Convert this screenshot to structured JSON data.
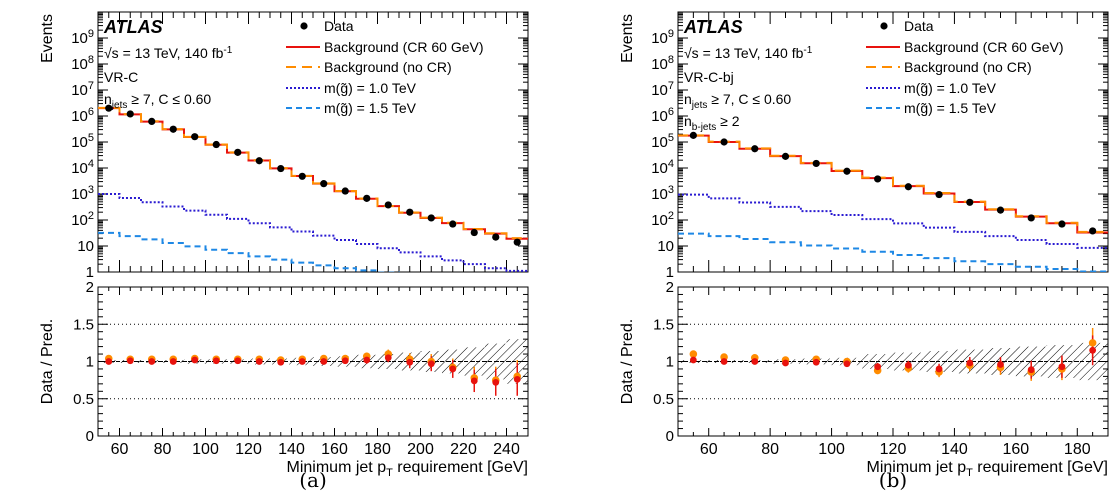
{
  "figure": {
    "atlas_label": "ATLAS",
    "energy_text": "√s = 13 TeV, 140 fb",
    "lumi_sup": "-1"
  },
  "legend": {
    "data": "Data",
    "bkg_cr": "Background (CR 60 GeV)",
    "bkg_nocr": "Background (no CR)",
    "sig1": "m(g̃) = 1.0 TeV",
    "sig2": "m(g̃) = 1.5 TeV"
  },
  "colors": {
    "data": "#000000",
    "bkg_cr": "#e8130e",
    "bkg_nocr": "#ff8c00",
    "sig1": "#2a1bd1",
    "sig2": "#1e88e5",
    "ratio_cr": "#e8130e",
    "ratio_nocr": "#ff8c00"
  },
  "chart_data": [
    {
      "type": "line",
      "panel": "(a)",
      "region": "VR-C",
      "selection_lines": [
        {
          "main": "n",
          "sub": "jets",
          "rest": " ≥ 7,  C ≤ 0.60"
        }
      ],
      "xlabel": "Minimum jet p",
      "xlabel_sub": "T",
      "xlabel_rest": " requirement [GeV]",
      "ylabel": "Events",
      "ratio_ylabel": "Data / Pred.",
      "xlim": [
        50,
        250
      ],
      "ylim": [
        1,
        10000000000
      ],
      "log_y": true,
      "ratio_ylim": [
        0,
        2
      ],
      "x_ticks": [
        60,
        80,
        100,
        120,
        140,
        160,
        180,
        200,
        220,
        240
      ],
      "y_ticks": [
        1,
        10,
        100,
        1000,
        10000,
        100000,
        1000000,
        10000000,
        100000000,
        1000000000
      ],
      "y_tick_labels": [
        {
          "base": "1",
          "exp": ""
        },
        {
          "base": "10",
          "exp": ""
        },
        {
          "base": "10",
          "exp": "2"
        },
        {
          "base": "10",
          "exp": "3"
        },
        {
          "base": "10",
          "exp": "4"
        },
        {
          "base": "10",
          "exp": "5"
        },
        {
          "base": "10",
          "exp": "6"
        },
        {
          "base": "10",
          "exp": "7"
        },
        {
          "base": "10",
          "exp": "8"
        },
        {
          "base": "10",
          "exp": "9"
        }
      ],
      "ratio_ticks": [
        0,
        0.5,
        1,
        1.5,
        2
      ],
      "ratio_tick_labels": [
        "0",
        "0.5",
        "1",
        "1.5",
        "2"
      ],
      "x": [
        55,
        65,
        75,
        85,
        95,
        105,
        115,
        125,
        135,
        145,
        155,
        165,
        175,
        185,
        195,
        205,
        215,
        225,
        235,
        245
      ],
      "series": [
        {
          "name": "Data",
          "kind": "points",
          "values": [
            2000000,
            1200000,
            620000,
            310000,
            160000,
            80000,
            40000,
            19000,
            9500,
            4800,
            2500,
            1300,
            680,
            380,
            200,
            120,
            70,
            33,
            22,
            14
          ]
        },
        {
          "name": "Background (CR 60 GeV)",
          "kind": "hist",
          "values": [
            2000000,
            1150000,
            610000,
            305000,
            155000,
            78000,
            39000,
            19500,
            9700,
            4900,
            2500,
            1280,
            660,
            340,
            190,
            120,
            76,
            44,
            30,
            19
          ]
        },
        {
          "name": "Background (no CR)",
          "kind": "hist-dashed",
          "values": [
            2050000,
            1180000,
            630000,
            312000,
            158000,
            80000,
            40000,
            20000,
            9900,
            5000,
            2560,
            1300,
            670,
            345,
            195,
            123,
            78,
            45,
            31,
            20
          ]
        },
        {
          "name": "m(g̃) = 1.0 TeV",
          "kind": "hist-dotted",
          "values": [
            1000,
            700,
            480,
            330,
            230,
            160,
            110,
            75,
            52,
            36,
            25,
            17,
            12,
            8.2,
            5.7,
            4,
            2.8,
            2,
            1.4,
            1.1
          ]
        },
        {
          "name": "m(g̃) = 1.5 TeV",
          "kind": "hist-dashed2",
          "values": [
            32,
            24,
            18,
            13,
            9.7,
            7.2,
            5.3,
            4,
            3,
            2.3,
            1.8,
            1.4,
            1.15,
            0.95,
            0.8,
            0.7,
            0.6,
            0.5,
            0.45,
            0.4
          ]
        }
      ],
      "ratio": {
        "cr": [
          1.0,
          1.01,
          1.0,
          1.0,
          1.02,
          1.01,
          1.01,
          1.0,
          0.99,
          1.0,
          1.0,
          1.01,
          1.02,
          1.05,
          0.99,
          0.97,
          0.9,
          0.74,
          0.72,
          0.76
        ],
        "nocr": [
          1.04,
          1.03,
          1.03,
          1.03,
          1.04,
          1.03,
          1.03,
          1.03,
          1.02,
          1.03,
          1.04,
          1.04,
          1.07,
          1.1,
          1.03,
          1.0,
          0.92,
          0.78,
          0.75,
          0.8
        ],
        "err": [
          0.01,
          0.01,
          0.01,
          0.01,
          0.01,
          0.01,
          0.01,
          0.01,
          0.02,
          0.02,
          0.03,
          0.04,
          0.05,
          0.06,
          0.08,
          0.1,
          0.12,
          0.15,
          0.18,
          0.22
        ],
        "band": [
          0.02,
          0.02,
          0.02,
          0.02,
          0.03,
          0.03,
          0.03,
          0.04,
          0.04,
          0.05,
          0.06,
          0.07,
          0.09,
          0.1,
          0.12,
          0.14,
          0.16,
          0.19,
          0.24,
          0.3
        ]
      }
    },
    {
      "type": "line",
      "panel": "(b)",
      "region": "VR-C-bj",
      "selection_lines": [
        {
          "main": "n",
          "sub": "jets",
          "rest": " ≥ 7,  C ≤ 0.60"
        },
        {
          "main": "n",
          "sub": "b-jets",
          "rest": " ≥ 2"
        }
      ],
      "xlabel": "Minimum jet p",
      "xlabel_sub": "T",
      "xlabel_rest": " requirement [GeV]",
      "ylabel": "Events",
      "ratio_ylabel": "Data / Pred.",
      "xlim": [
        50,
        190
      ],
      "ylim": [
        1,
        10000000000
      ],
      "log_y": true,
      "ratio_ylim": [
        0,
        2
      ],
      "x_ticks": [
        60,
        80,
        100,
        120,
        140,
        160,
        180
      ],
      "y_ticks": [
        1,
        10,
        100,
        1000,
        10000,
        100000,
        1000000,
        10000000,
        100000000,
        1000000000
      ],
      "y_tick_labels": [
        {
          "base": "1",
          "exp": ""
        },
        {
          "base": "10",
          "exp": ""
        },
        {
          "base": "10",
          "exp": "2"
        },
        {
          "base": "10",
          "exp": "3"
        },
        {
          "base": "10",
          "exp": "4"
        },
        {
          "base": "10",
          "exp": "5"
        },
        {
          "base": "10",
          "exp": "6"
        },
        {
          "base": "10",
          "exp": "7"
        },
        {
          "base": "10",
          "exp": "8"
        },
        {
          "base": "10",
          "exp": "9"
        }
      ],
      "ratio_ticks": [
        0,
        0.5,
        1,
        1.5,
        2
      ],
      "ratio_tick_labels": [
        "0",
        "0.5",
        "1",
        "1.5",
        "2"
      ],
      "x": [
        55,
        65,
        75,
        85,
        95,
        105,
        115,
        125,
        135,
        145,
        155,
        165,
        175,
        185
      ],
      "series": [
        {
          "name": "Data",
          "kind": "points",
          "values": [
            180000,
            100000,
            55000,
            28000,
            15000,
            7500,
            3800,
            1900,
            950,
            480,
            240,
            120,
            70,
            38
          ]
        },
        {
          "name": "Background (CR 60 GeV)",
          "kind": "hist",
          "values": [
            175000,
            100000,
            55000,
            28500,
            15200,
            7700,
            4100,
            2000,
            1050,
            490,
            250,
            135,
            75,
            33
          ]
        },
        {
          "name": "Background (no CR)",
          "kind": "hist-dashed",
          "values": [
            180000,
            103000,
            57000,
            29500,
            15700,
            7950,
            4250,
            2080,
            1090,
            510,
            260,
            140,
            78,
            35
          ]
        },
        {
          "name": "m(g̃) = 1.0 TeV",
          "kind": "hist-dotted",
          "values": [
            950,
            680,
            470,
            320,
            220,
            155,
            108,
            74,
            51,
            35,
            24,
            17,
            12,
            8.5
          ]
        },
        {
          "name": "m(g̃) = 1.5 TeV",
          "kind": "hist-dashed2",
          "values": [
            30,
            24,
            18.5,
            14,
            10.5,
            8,
            6,
            4.5,
            3.4,
            2.6,
            2,
            1.6,
            1.3,
            1.05
          ]
        }
      ],
      "ratio": {
        "cr": [
          1.02,
          1.0,
          1.0,
          0.98,
          0.99,
          0.97,
          0.93,
          0.95,
          0.9,
          0.98,
          0.96,
          0.89,
          0.93,
          1.15
        ],
        "nocr": [
          1.1,
          1.06,
          1.05,
          1.02,
          1.03,
          1.0,
          0.88,
          0.91,
          0.86,
          0.95,
          0.92,
          0.86,
          0.9,
          1.25
        ],
        "err": [
          0.02,
          0.02,
          0.02,
          0.03,
          0.03,
          0.04,
          0.05,
          0.06,
          0.07,
          0.08,
          0.1,
          0.12,
          0.15,
          0.2
        ],
        "band": [
          0.02,
          0.02,
          0.02,
          0.03,
          0.04,
          0.05,
          0.1,
          0.12,
          0.14,
          0.16,
          0.18,
          0.2,
          0.22,
          0.25
        ]
      }
    }
  ],
  "captions": [
    "(a)",
    "(b)"
  ]
}
